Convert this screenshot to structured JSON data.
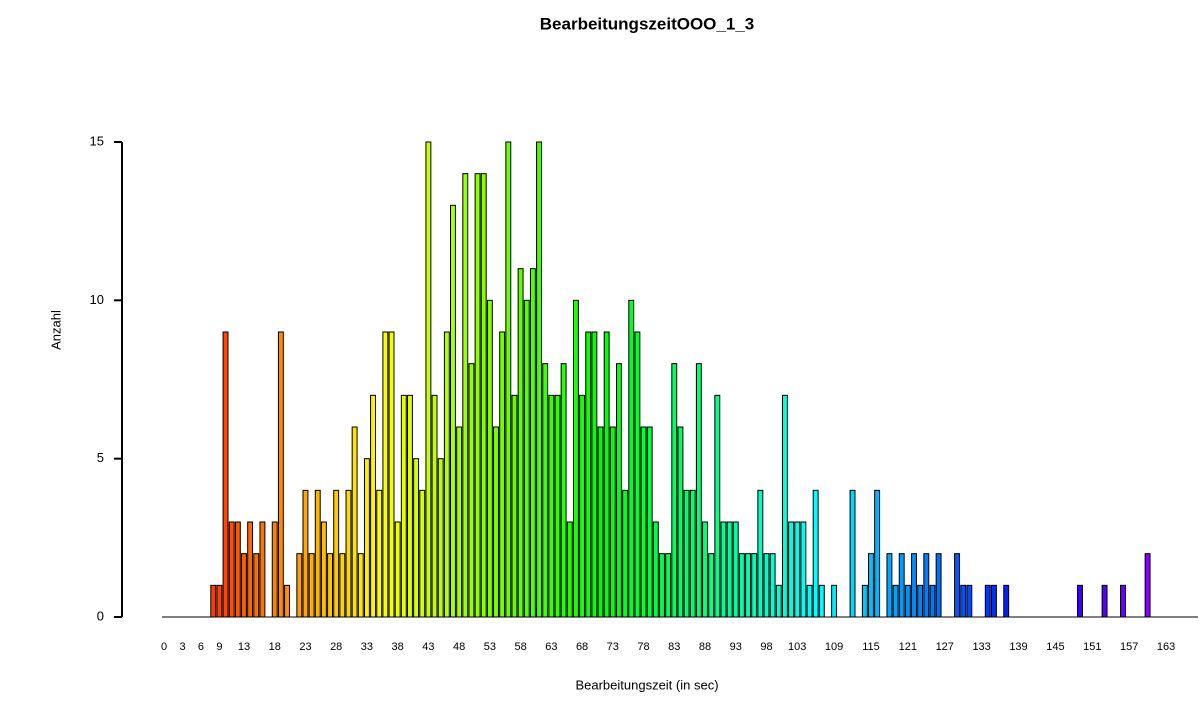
{
  "chart_data": {
    "type": "bar",
    "title": "BearbeitungszeitOOO_1_3",
    "x_label": "Bearbeitungszeit (in sec)",
    "y_label": "Anzahl",
    "categories": [
      "0",
      null,
      null,
      "3",
      null,
      null,
      "6",
      null,
      null,
      "9",
      null,
      null,
      null,
      "13",
      null,
      null,
      null,
      null,
      "18",
      null,
      null,
      null,
      null,
      "23",
      null,
      null,
      null,
      null,
      "28",
      null,
      null,
      null,
      null,
      "33",
      null,
      null,
      null,
      null,
      "38",
      null,
      null,
      null,
      null,
      "43",
      null,
      null,
      null,
      null,
      "48",
      null,
      null,
      null,
      null,
      "53",
      null,
      null,
      null,
      null,
      "58",
      null,
      null,
      null,
      null,
      "63",
      null,
      null,
      null,
      null,
      "68",
      null,
      null,
      null,
      null,
      "73",
      null,
      null,
      null,
      null,
      "78",
      null,
      null,
      null,
      null,
      "83",
      null,
      null,
      null,
      null,
      "88",
      null,
      null,
      null,
      null,
      "93",
      null,
      null,
      null,
      null,
      "98",
      null,
      null,
      null,
      null,
      "103",
      null,
      null,
      null,
      null,
      null,
      "109",
      null,
      null,
      null,
      null,
      null,
      "115",
      null,
      null,
      null,
      null,
      null,
      "121",
      null,
      null,
      null,
      null,
      null,
      "127",
      null,
      null,
      null,
      null,
      null,
      "133",
      null,
      null,
      null,
      null,
      null,
      "139",
      null,
      null,
      null,
      null,
      null,
      "145",
      null,
      null,
      null,
      null,
      null,
      "151",
      null,
      null,
      null,
      null,
      null,
      "157",
      null,
      null,
      null,
      null,
      null,
      "163",
      null,
      null
    ],
    "values": [
      0,
      0,
      0,
      0,
      0,
      0,
      0,
      0,
      1,
      1,
      9,
      3,
      3,
      2,
      3,
      2,
      3,
      0,
      3,
      9,
      1,
      0,
      2,
      4,
      2,
      4,
      3,
      2,
      4,
      2,
      4,
      6,
      2,
      5,
      7,
      4,
      9,
      9,
      3,
      7,
      7,
      5,
      4,
      15,
      7,
      5,
      9,
      13,
      6,
      14,
      8,
      14,
      14,
      10,
      6,
      9,
      15,
      7,
      11,
      10,
      11,
      15,
      8,
      7,
      7,
      8,
      3,
      10,
      7,
      9,
      9,
      6,
      9,
      6,
      8,
      4,
      10,
      9,
      6,
      6,
      3,
      2,
      2,
      8,
      6,
      4,
      4,
      8,
      3,
      2,
      7,
      3,
      3,
      3,
      2,
      2,
      2,
      4,
      2,
      2,
      1,
      7,
      3,
      3,
      3,
      1,
      4,
      1,
      0,
      1,
      0,
      0,
      4,
      0,
      1,
      2,
      4,
      0,
      2,
      1,
      2,
      1,
      2,
      1,
      2,
      1,
      2,
      0,
      0,
      2,
      1,
      1,
      0,
      0,
      1,
      1,
      0,
      1,
      0,
      0,
      0,
      0,
      0,
      0,
      0,
      0,
      0,
      0,
      0,
      1,
      0,
      0,
      0,
      1,
      0,
      0,
      1,
      0,
      0,
      0,
      2,
      0,
      0,
      0,
      0,
      0
    ],
    "palette": "rainbow",
    "hue_range": [
      0,
      280
    ],
    "edge_color": "#000000",
    "ylim": [
      0,
      15
    ],
    "yticks": [
      0,
      5,
      10,
      15
    ],
    "grid": false
  }
}
